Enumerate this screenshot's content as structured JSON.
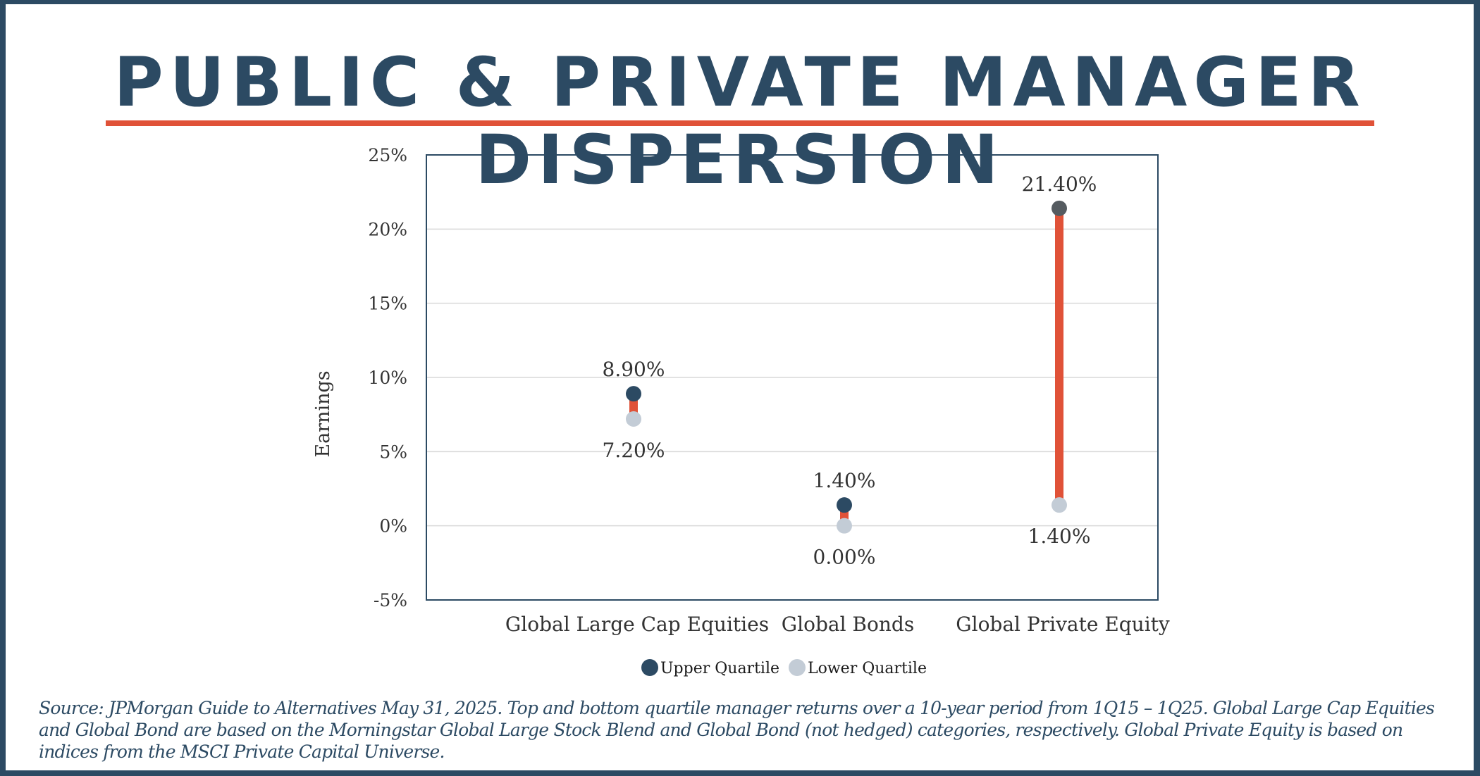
{
  "title": "PUBLIC & PRIVATE MANAGER DISPERSION",
  "colors": {
    "navy": "#2c4a63",
    "accent": "#e05238",
    "upper": "#2c4a63",
    "upper_pe": "#555b60",
    "lower": "#c3ccd6",
    "grid": "#d9d9d9",
    "axis_text": "#333333"
  },
  "chart_data": {
    "type": "scatter",
    "title": "",
    "xlabel": "",
    "ylabel": "Earnings",
    "ylim": [
      -5,
      25
    ],
    "yticks": [
      -5,
      0,
      5,
      10,
      15,
      20,
      25
    ],
    "ytick_labels": [
      "-5%",
      "0%",
      "5%",
      "10%",
      "15%",
      "20%",
      "25%"
    ],
    "grid": true,
    "categories": [
      "Global Large Cap Equities",
      "Global Bonds",
      "Global Private Equity"
    ],
    "series": [
      {
        "name": "Upper Quartile",
        "values": [
          8.9,
          1.4,
          21.4
        ],
        "labels": [
          "8.90%",
          "1.40%",
          "21.40%"
        ]
      },
      {
        "name": "Lower Quartile",
        "values": [
          7.2,
          0.0,
          1.4
        ],
        "labels": [
          "7.20%",
          "0.00%",
          "1.40%"
        ]
      }
    ],
    "legend": [
      {
        "name": "Upper Quartile"
      },
      {
        "name": "Lower Quartile"
      }
    ],
    "legend_position": "bottom-center"
  },
  "source_note": "Source: JPMorgan Guide to Alternatives May 31, 2025. Top and bottom quartile manager returns over a 10-year period from 1Q15 – 1Q25. Global Large Cap Equities and Global Bond are based on the Morningstar Global Large Stock Blend and Global Bond (not hedged) categories, respectively. Global Private Equity is based on indices from the MSCI Private Capital Universe."
}
